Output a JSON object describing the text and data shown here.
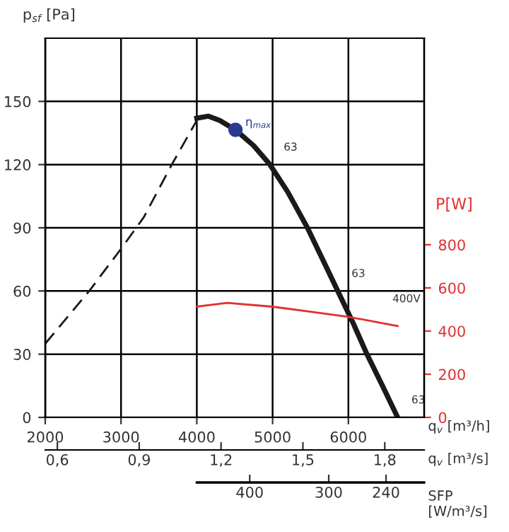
{
  "chart_data": {
    "type": "line",
    "xlabel": "q$_{v}$ [m³/h]",
    "x2label": "q$_{v}$ [m³/s]",
    "ylabel": "p$_{sf}$ [Pa]",
    "y2label": "P[W]",
    "xlim": [
      2000,
      7000
    ],
    "xticks": [
      2000,
      3000,
      4000,
      5000,
      6000
    ],
    "x2lim": [
      0.5556,
      1.9444
    ],
    "x2ticks": [
      {
        "value": 0.6,
        "label": "0,6"
      },
      {
        "value": 0.9,
        "label": "0,9"
      },
      {
        "value": 1.2,
        "label": "1,2"
      },
      {
        "value": 1.5,
        "label": "1,5"
      },
      {
        "value": 1.8,
        "label": "1,8"
      }
    ],
    "ylim": [
      0,
      180
    ],
    "yticks": [
      0,
      30,
      60,
      90,
      120,
      150
    ],
    "y2lim": [
      0,
      1757
    ],
    "y2ticks": [
      0,
      200,
      400,
      600,
      800
    ],
    "grid": true,
    "series": [
      {
        "color": "#1a1a1a",
        "line_style": "solid",
        "x": [
          4000,
          4150,
          4300,
          4510,
          4750,
          4965,
          5200,
          5460,
          5660,
          5860,
          6060,
          6245,
          6450,
          6650
        ],
        "values": [
          142,
          143,
          141,
          136.5,
          129,
          120,
          107,
          90,
          75,
          60,
          45,
          30,
          15,
          0
        ]
      },
      {
        "color": "#1a1a1a",
        "line_style": "dashed",
        "x": [
          2000,
          2580,
          3000,
          3300,
          3670,
          4000
        ],
        "values": [
          35,
          60,
          80,
          95,
          120,
          141
        ]
      },
      {
        "color": "#e03030",
        "line_style": "solid",
        "axis": "y2",
        "x": [
          4000,
          4400,
          5000,
          5500,
          6000,
          6650
        ],
        "values": [
          513,
          531,
          513,
          490,
          466,
          423
        ]
      },
      {
        "type": "scatter",
        "name": "η$_{max}$",
        "color": "#2b3990",
        "marker": "circle",
        "x": [
          4510
        ],
        "values": [
          136.5
        ]
      }
    ],
    "annotations": [
      {
        "text": "63",
        "x": 4965,
        "y": 120
      },
      {
        "text": "63",
        "x": 5860,
        "y": 60
      },
      {
        "text": "63",
        "x": 6650,
        "y": 0
      },
      {
        "text": "400V",
        "x": 6400,
        "y": 48
      },
      "400",
      "300",
      "240",
      "SFP [W/m³/s]"
    ]
  }
}
